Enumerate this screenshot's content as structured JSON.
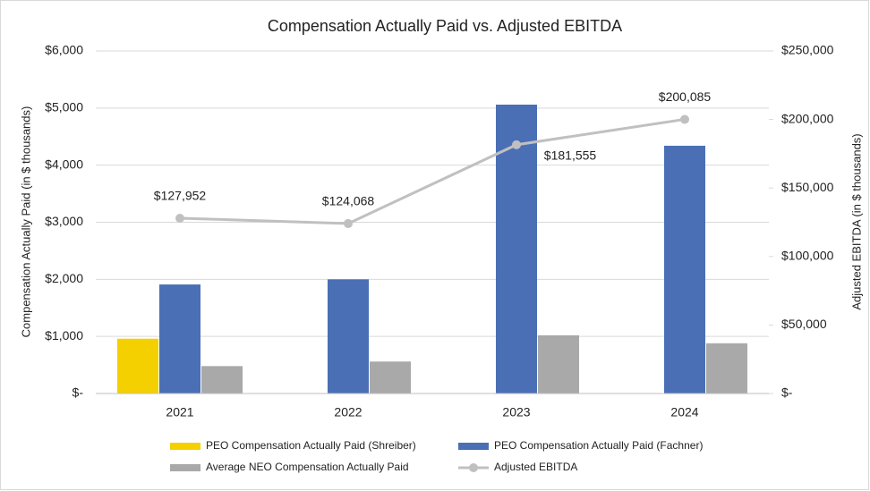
{
  "chart_data": {
    "type": "bar",
    "title": "Compensation Actually Paid vs. Adjusted EBITDA",
    "y_label": "Compensation Actually Paid (in $ thousands)",
    "y2_label": "Adjusted EBITDA (in $ thousands)",
    "categories": [
      "2021",
      "2022",
      "2023",
      "2024"
    ],
    "series": [
      {
        "name": "PEO Compensation Actually Paid (Shreiber)",
        "color": "#f5d000",
        "values": [
          960,
          null,
          null,
          null
        ]
      },
      {
        "name": "PEO Compensation Actually Paid (Fachner)",
        "color": "#4a6fb5",
        "values": [
          1910,
          2000,
          5060,
          4340
        ]
      },
      {
        "name": "Average NEO Compensation Actually Paid",
        "color": "#a9a9a9",
        "values": [
          480,
          560,
          1020,
          880
        ]
      },
      {
        "name": "Adjusted EBITDA",
        "color": "#c0c0c0",
        "type": "line",
        "axis": "y2",
        "values": [
          127952,
          124068,
          181555,
          200085
        ],
        "value_labels": [
          "$127,952",
          "$124,068",
          "$181,555",
          "$200,085"
        ]
      }
    ],
    "ylim": [
      0,
      6000
    ],
    "yticks": [
      {
        "value": 0,
        "label": "$-"
      },
      {
        "value": 1000,
        "label": "$1,000"
      },
      {
        "value": 2000,
        "label": "$2,000"
      },
      {
        "value": 3000,
        "label": "$3,000"
      },
      {
        "value": 4000,
        "label": "$4,000"
      },
      {
        "value": 5000,
        "label": "$5,000"
      },
      {
        "value": 6000,
        "label": "$6,000"
      }
    ],
    "y2lim": [
      0,
      250000
    ],
    "y2ticks": [
      {
        "value": 0,
        "label": "$-"
      },
      {
        "value": 50000,
        "label": "$50,000"
      },
      {
        "value": 100000,
        "label": "$100,000"
      },
      {
        "value": 150000,
        "label": "$150,000"
      },
      {
        "value": 200000,
        "label": "$200,000"
      },
      {
        "value": 250000,
        "label": "$250,000"
      }
    ],
    "grid": true,
    "legend": "bottom"
  }
}
